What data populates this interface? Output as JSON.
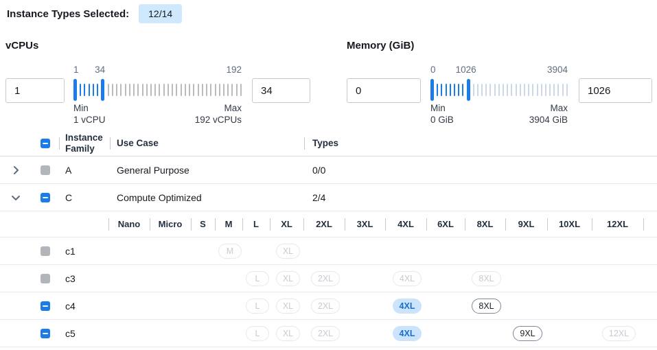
{
  "header": {
    "label": "Instance Types Selected:",
    "badge": "12/14"
  },
  "filters": {
    "vcpus": {
      "title": "vCPUs",
      "min_value": "1",
      "max_value": "34",
      "scale_labels": [
        "1",
        "34",
        "192"
      ],
      "min_label": "Min",
      "min_sub": "1 vCPU",
      "max_label": "Max",
      "max_sub": "192 vCPUs",
      "slider": {
        "min": 1,
        "max": 192,
        "low": 1,
        "high": 34,
        "ticks": 39,
        "tick_off_color": "#b9bcbf"
      }
    },
    "memory": {
      "title": "Memory (GiB)",
      "min_value": "0",
      "max_value": "1026",
      "scale_labels": [
        "0",
        "1026",
        "3904"
      ],
      "min_label": "Min",
      "min_sub": "0 GiB",
      "max_label": "Max",
      "max_sub": "3904 GiB",
      "slider": {
        "min": 0,
        "max": 3904,
        "low": 0,
        "high": 1026,
        "ticks": 32,
        "tick_off_color": "#ccd7e9"
      }
    }
  },
  "table": {
    "columns": {
      "family": "Instance Family",
      "use_case": "Use Case",
      "types": "Types"
    },
    "size_columns": [
      "Nano",
      "Micro",
      "S",
      "M",
      "L",
      "XL",
      "2XL",
      "3XL",
      "4XL",
      "6XL",
      "8XL",
      "9XL",
      "10XL",
      "12XL"
    ],
    "family_rows": [
      {
        "family": "A",
        "use_case": "General Purpose",
        "types": "0/0",
        "expanded": false,
        "checkbox": "disabled"
      },
      {
        "family": "C",
        "use_case": "Compute Optimized",
        "types": "2/4",
        "expanded": true,
        "checkbox": "indeterminate"
      }
    ],
    "instance_rows": [
      {
        "name": "c1",
        "checkbox": "disabled",
        "sizes": {
          "M": "disabled",
          "XL": "disabled"
        }
      },
      {
        "name": "c3",
        "checkbox": "disabled",
        "sizes": {
          "L": "disabled",
          "XL": "disabled",
          "2XL": "disabled",
          "4XL": "disabled",
          "8XL": "disabled"
        }
      },
      {
        "name": "c4",
        "checkbox": "indeterminate",
        "sizes": {
          "L": "disabled",
          "XL": "disabled",
          "2XL": "disabled",
          "4XL": "selected",
          "8XL": "enabled"
        }
      },
      {
        "name": "c5",
        "checkbox": "indeterminate",
        "sizes": {
          "L": "disabled",
          "XL": "disabled",
          "2XL": "disabled",
          "4XL": "selected",
          "9XL": "enabled",
          "12XL": "disabled"
        }
      }
    ]
  },
  "colors": {
    "accent_blue": "#1b7ce8",
    "selected_pill_bg": "#cce4fb",
    "selected_pill_text": "#1470d0",
    "badge_bg": "#cfe8fd",
    "disabled_checkbox": "#b2b5ba"
  }
}
